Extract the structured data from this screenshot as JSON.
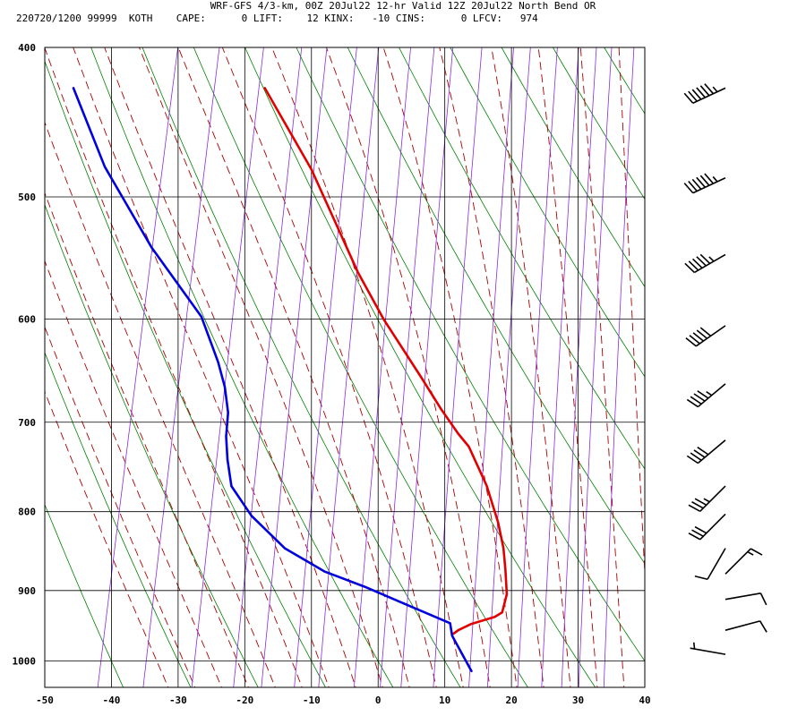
{
  "header": {
    "line1": "WRF-GFS 4/3-km, 00Z 20Jul22 12-hr Valid 12Z 20Jul22 North Bend OR",
    "line2": "220720/1200 99999  KOTH    CAPE:      0 LIFT:    12 KINX:   -10 CINS:      0 LFCV:   974"
  },
  "colors": {
    "temperature": "#e00000",
    "dewpoint": "#0000dd",
    "isotherm": "#000000",
    "dry_adiabat": "#008000",
    "moist_adiabat": "#aa0000",
    "mixing_ratio": "#8a2be2",
    "wind_barb": "#000000"
  },
  "chart_data": {
    "type": "line",
    "subtype": "skew-t",
    "title": "WRF-GFS 4/3-km, 00Z 20Jul22 12-hr Valid 12Z 20Jul22 North Bend OR",
    "xlabel": "",
    "ylabel": "",
    "xlim": [
      -50,
      40
    ],
    "ylim": [
      1040,
      400
    ],
    "yscale": "log",
    "x_ticks": [
      -50,
      -40,
      -30,
      -20,
      -10,
      0,
      10,
      20,
      30,
      40
    ],
    "y_ticks": [
      400,
      500,
      600,
      700,
      800,
      900,
      1000
    ],
    "grid": true,
    "series": [
      {
        "key": "temperature",
        "points": [
          [
            -17,
            425
          ],
          [
            -10,
            480
          ],
          [
            -3,
            560
          ],
          [
            0.8,
            600
          ],
          [
            6.5,
            655
          ],
          [
            9.4,
            686
          ],
          [
            12,
            712
          ],
          [
            13.6,
            726
          ],
          [
            16.3,
            770
          ],
          [
            18,
            813
          ],
          [
            18.8,
            845
          ],
          [
            19.1,
            873
          ],
          [
            19.3,
            905
          ],
          [
            18.6,
            930
          ],
          [
            17.5,
            936
          ],
          [
            14,
            946
          ],
          [
            12,
            955
          ],
          [
            11.3,
            960
          ]
        ]
      },
      {
        "key": "dewpoint",
        "points": [
          [
            -45.7,
            425
          ],
          [
            -41,
            478
          ],
          [
            -34,
            539
          ],
          [
            -26.5,
            598
          ],
          [
            -24,
            640
          ],
          [
            -23,
            664
          ],
          [
            -22.5,
            690
          ],
          [
            -22.8,
            715
          ],
          [
            -22.6,
            740
          ],
          [
            -22,
            770
          ],
          [
            -19,
            805
          ],
          [
            -14,
            845
          ],
          [
            -8,
            875
          ],
          [
            -2,
            895
          ],
          [
            5,
            922
          ],
          [
            10.8,
            945
          ],
          [
            11.1,
            963
          ],
          [
            14,
            1015
          ]
        ]
      }
    ],
    "wind_barbs": [
      {
        "p": 425,
        "dir": 245,
        "kt": 65
      },
      {
        "p": 486,
        "dir": 245,
        "kt": 65
      },
      {
        "p": 545,
        "dir": 240,
        "kt": 55
      },
      {
        "p": 606,
        "dir": 235,
        "kt": 50
      },
      {
        "p": 661,
        "dir": 230,
        "kt": 45
      },
      {
        "p": 719,
        "dir": 230,
        "kt": 40
      },
      {
        "p": 770,
        "dir": 225,
        "kt": 35
      },
      {
        "p": 803,
        "dir": 225,
        "kt": 30
      },
      {
        "p": 845,
        "dir": 210,
        "kt": 10
      },
      {
        "p": 878,
        "dir": 45,
        "kt": 15
      },
      {
        "p": 912,
        "dir": 80,
        "kt": 10
      },
      {
        "p": 955,
        "dir": 75,
        "kt": 10
      },
      {
        "p": 990,
        "dir": 280,
        "kt": 5
      }
    ]
  }
}
